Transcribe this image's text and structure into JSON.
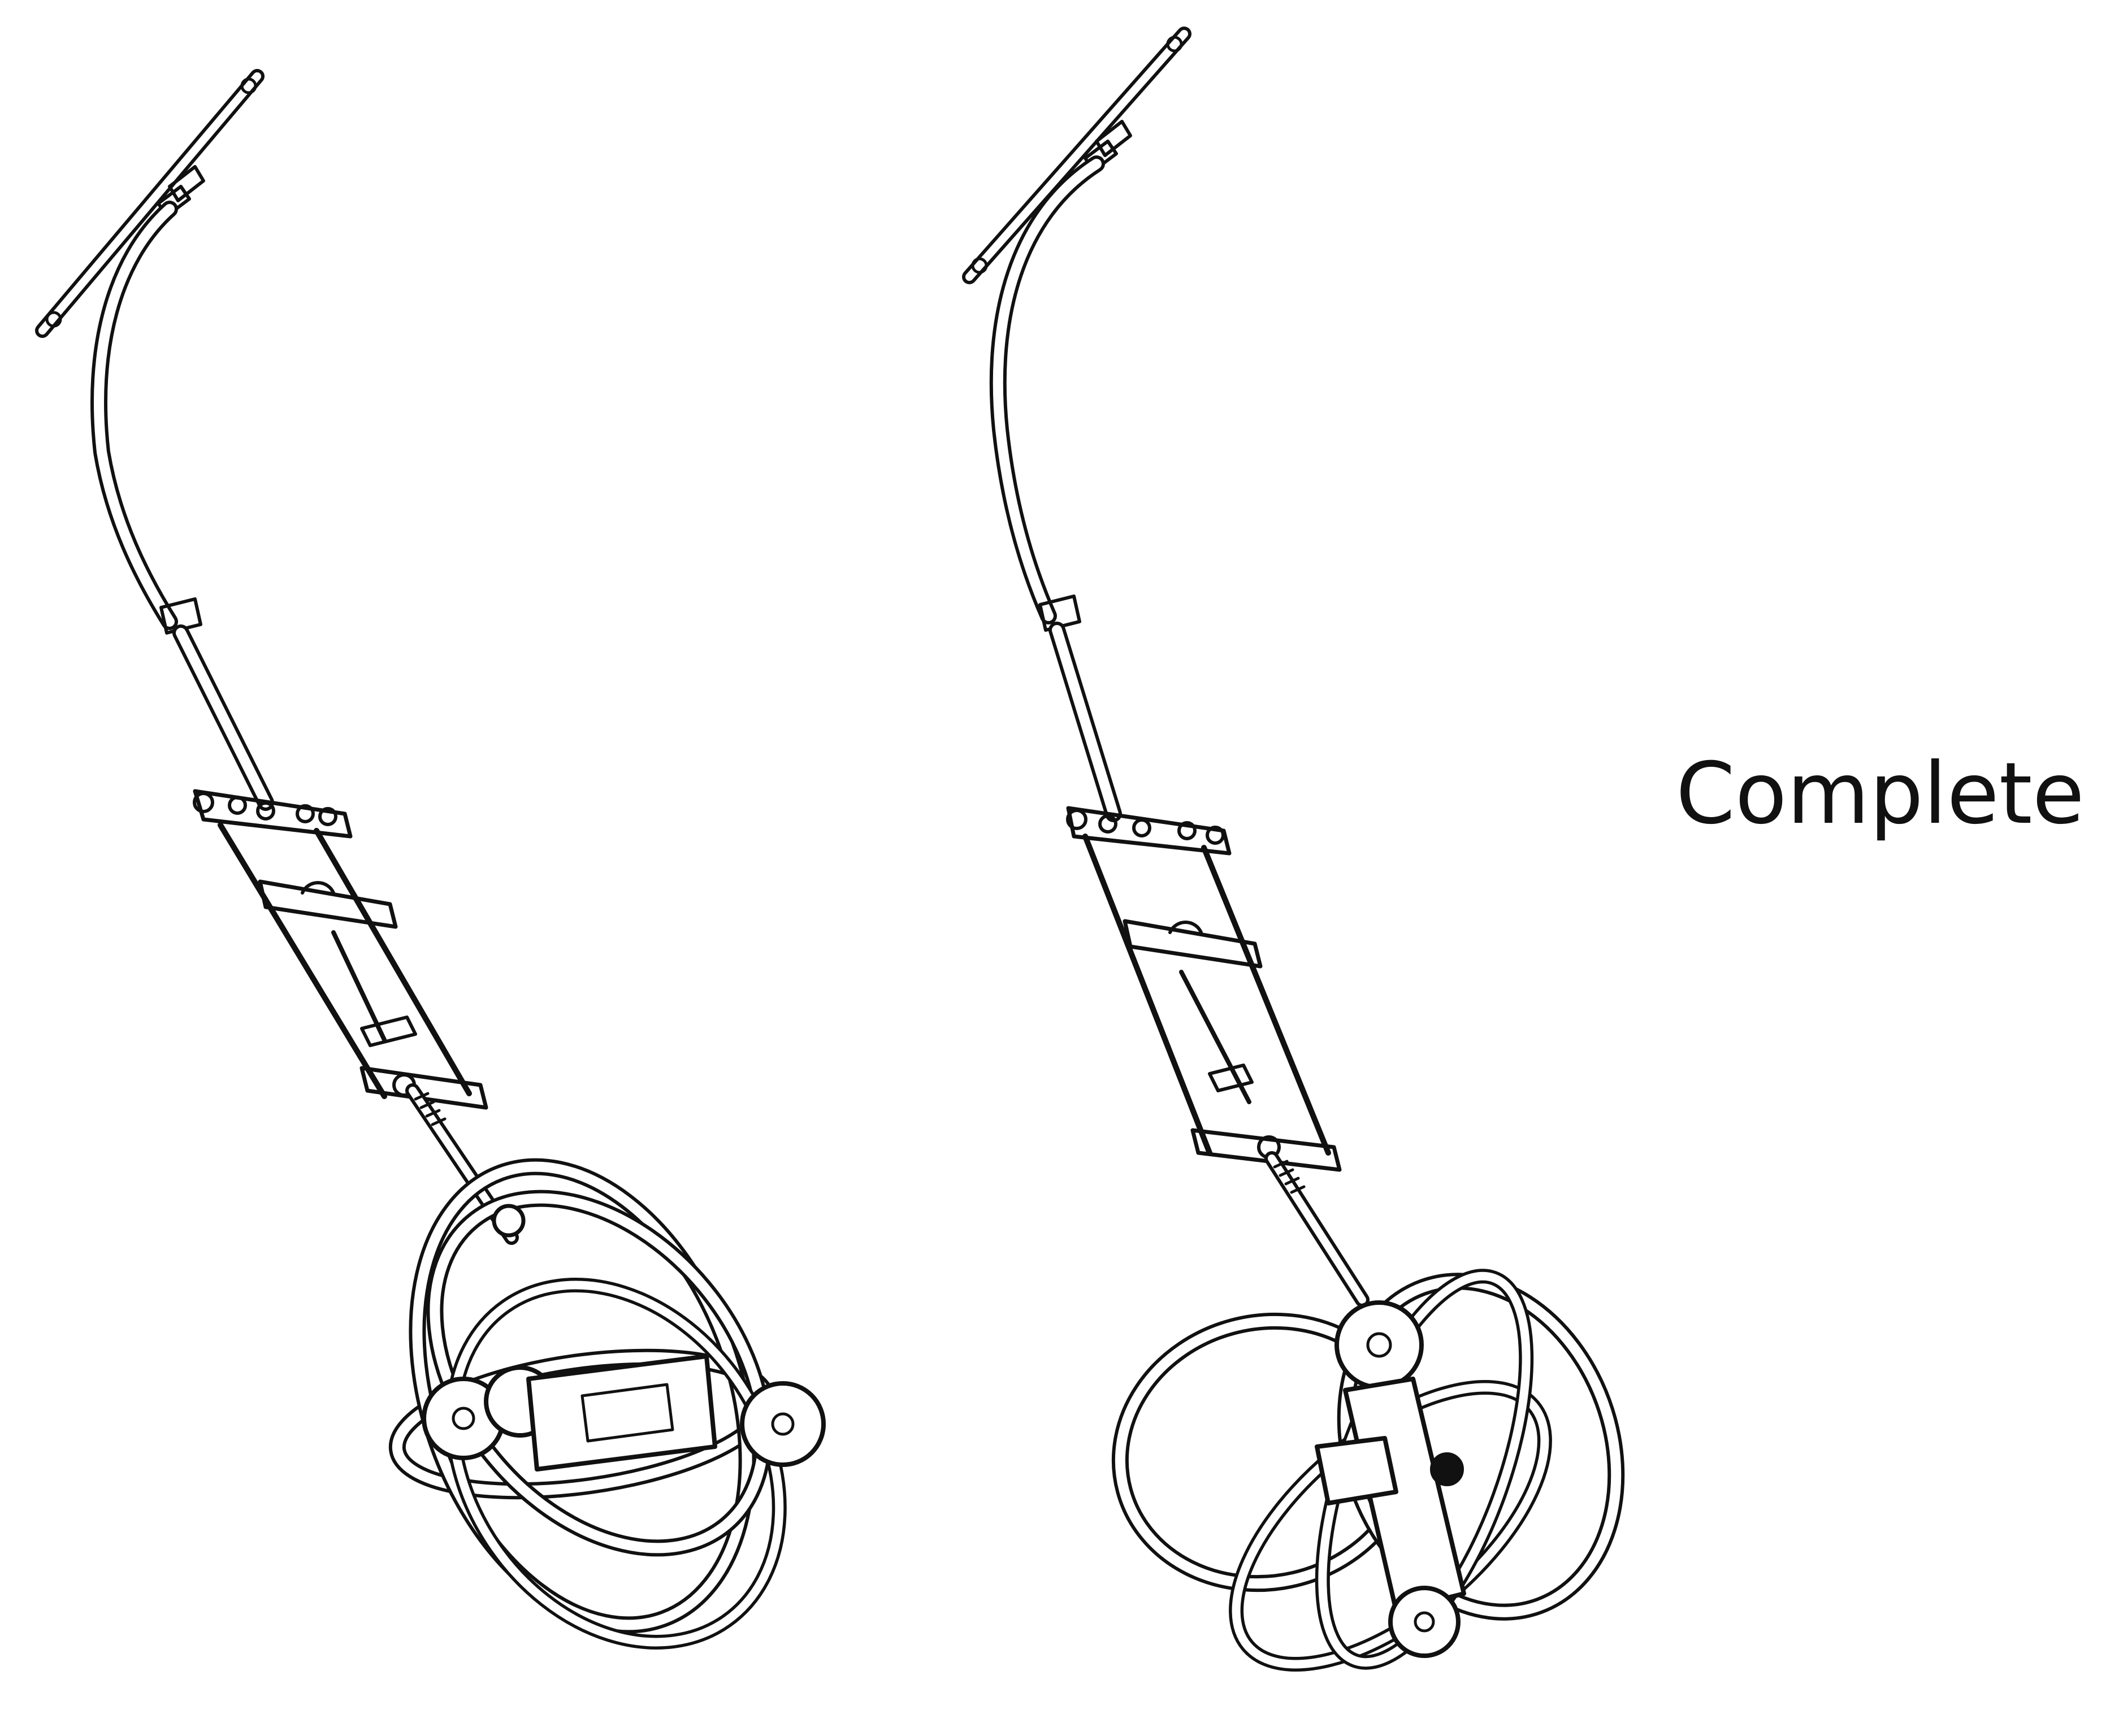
{
  "caption": "Complete",
  "colors": {
    "background": "#ffffff",
    "ink": "#111111"
  }
}
